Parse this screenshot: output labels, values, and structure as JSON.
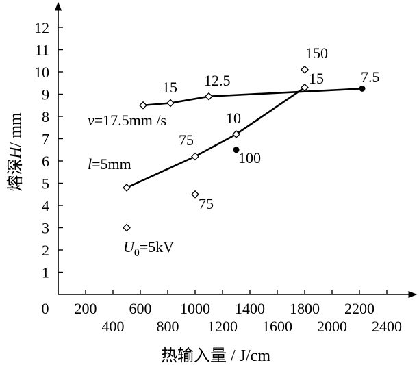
{
  "chart_data": {
    "type": "line",
    "xlabel": "热输入量 / J/cm",
    "ylabel_prefix": "熔深",
    "ylabel_var": "H",
    "ylabel_unit": "/ mm",
    "xlim": [
      0,
      2500
    ],
    "ylim": [
      0,
      13
    ],
    "x_ticks_row1": [
      "0",
      "200",
      "600",
      "1000",
      "1400",
      "1800",
      "2200"
    ],
    "x_ticks_row1_values": [
      0,
      200,
      600,
      1000,
      1400,
      1800,
      2200
    ],
    "x_ticks_row2": [
      "400",
      "800",
      "1200",
      "1600",
      "2000",
      "2400"
    ],
    "x_ticks_row2_values": [
      400,
      800,
      1200,
      1600,
      2000,
      2400
    ],
    "y_ticks": [
      "1",
      "2",
      "3",
      "4",
      "5",
      "6",
      "7",
      "8",
      "9",
      "10",
      "11",
      "12"
    ],
    "y_ticks_values": [
      1,
      2,
      3,
      4,
      5,
      6,
      7,
      8,
      9,
      10,
      11,
      12
    ],
    "series": [
      {
        "label_var": "v",
        "label_rest": "=17.5mm /s",
        "color": "#000000",
        "points": [
          {
            "x": 620,
            "y": 8.5,
            "marker": "diamond"
          },
          {
            "x": 820,
            "y": 8.6,
            "marker": "diamond"
          },
          {
            "x": 1100,
            "y": 8.9,
            "marker": "diamond"
          },
          {
            "x": 2220,
            "y": 9.25,
            "marker": "dot"
          }
        ]
      },
      {
        "label_var": "l",
        "label_rest": "=5mm",
        "color": "#000000",
        "points": [
          {
            "x": 500,
            "y": 4.8,
            "marker": "diamond"
          },
          {
            "x": 1000,
            "y": 6.2,
            "marker": "diamond"
          },
          {
            "x": 1300,
            "y": 7.2,
            "marker": "diamond"
          },
          {
            "x": 1800,
            "y": 9.3,
            "marker": "diamond"
          }
        ]
      }
    ],
    "extra_points": [
      {
        "x": 500,
        "y": 3.0,
        "marker": "diamond"
      },
      {
        "x": 1000,
        "y": 4.5,
        "marker": "diamond"
      },
      {
        "x": 1300,
        "y": 6.5,
        "marker": "dot"
      },
      {
        "x": 1800,
        "y": 10.1,
        "marker": "diamond"
      }
    ],
    "data_labels": [
      "15",
      "12.5",
      "7.5",
      "75",
      "10",
      "100",
      "150",
      "15",
      "75"
    ],
    "annotation_u0_var": "U",
    "annotation_u0_sub": "0",
    "annotation_u0_rest": "=5kV"
  }
}
